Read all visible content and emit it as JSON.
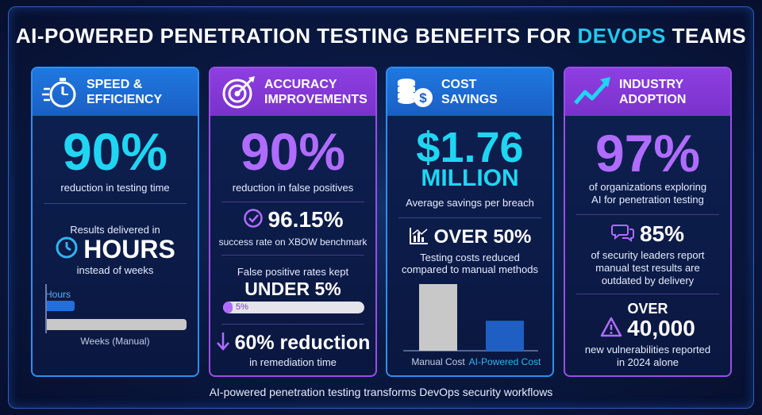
{
  "title": {
    "prefix": "AI-POWERED PENETRATION TESTING BENEFITS FOR ",
    "highlight": "DEVOPS",
    "suffix": " TEAMS"
  },
  "cards": {
    "speed": {
      "heading_line1": "SPEED &",
      "heading_line2": "EFFICIENCY",
      "stat": "90%",
      "stat_caption": "reduction in testing time",
      "results_line1": "Results delivered in",
      "results_big": "HOURS",
      "results_line2": "instead of weeks",
      "bar_hours_label": "Hours",
      "bar_weeks_label": "Weeks (Manual)",
      "bar_hours_fraction": 0.2,
      "bar_weeks_fraction": 1.0,
      "icon": "stopwatch-icon"
    },
    "accuracy": {
      "heading_line1": "ACCURACY",
      "heading_line2": "IMPROVEMENTS",
      "stat": "90%",
      "stat_caption": "reduction in false positives",
      "success_stat": "96.15%",
      "success_caption": "success rate on XBOW benchmark",
      "fp_line1": "False positive rates kept",
      "fp_big": "UNDER 5%",
      "fp_bar_label": "5%",
      "fp_bar_fraction": 0.05,
      "remed_stat": "60% reduction",
      "remed_caption": "in remediation time",
      "icon": "target-icon"
    },
    "cost": {
      "heading_line1": "COST",
      "heading_line2": "SAVINGS",
      "stat_line1": "$1.76",
      "stat_line2": "MILLION",
      "stat_caption": "Average savings per breach",
      "over_stat": "OVER 50%",
      "over_caption_line1": "Testing costs reduced",
      "over_caption_line2": "compared to manual methods",
      "icon": "coins-dollar-icon"
    },
    "industry": {
      "heading_line1": "INDUSTRY",
      "heading_line2": "ADOPTION",
      "stat": "97%",
      "stat_caption_line1": "of organizations exploring",
      "stat_caption_line2": "AI for penetration testing",
      "leaders_stat": "85%",
      "leaders_caption_line1": "of security leaders report",
      "leaders_caption_line2": "manual test results are",
      "leaders_caption_line3": "outdated by delivery",
      "vuln_line1": "OVER",
      "vuln_stat": "40,000",
      "vuln_caption_line1": "new vulnerabilities reported",
      "vuln_caption_line2": "in 2024 alone",
      "icon": "trend-up-icon"
    }
  },
  "chart_data": {
    "type": "bar",
    "categories": [
      "Manual Cost",
      "AI-Powered Cost"
    ],
    "values": [
      100,
      45
    ],
    "ylim": [
      0,
      100
    ],
    "colors": [
      "#c8c8c8",
      "#1f5fc4"
    ]
  },
  "footer": "AI-powered penetration testing transforms DevOps security workflows",
  "colors": {
    "cyan": "#1fd6f2",
    "violet": "#b06cff",
    "blue_border": "#2d8ff0",
    "purple_border": "#9a4ee8"
  }
}
